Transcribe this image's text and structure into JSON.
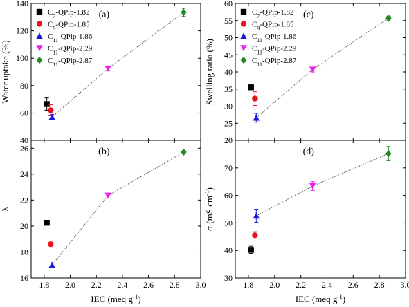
{
  "series_colors": [
    "#000000",
    "#e8141b",
    "#1a1adf",
    "#ee20ee",
    "#1f8a1f"
  ],
  "series_markers": [
    "square",
    "circle",
    "triangle-up",
    "triangle-down",
    "diamond"
  ],
  "shared_x": {
    "label": "IEC (meq g",
    "label_sup": "-1",
    "label_close": ")",
    "lim": [
      1.7,
      3.0
    ],
    "ticks": [
      1.8,
      2.0,
      2.2,
      2.4,
      2.6,
      2.8,
      3.0
    ],
    "tick_labels": [
      "1.8",
      "2.0",
      "2.2",
      "2.4",
      "2.6",
      "2.8",
      "3.0"
    ]
  },
  "chart_data": [
    {
      "id": "a",
      "type": "scatter",
      "panel_label": "(a)",
      "ylabel": "Water uptake (%)",
      "ylim": [
        40,
        140
      ],
      "yticks": [
        40,
        60,
        80,
        100,
        120,
        140
      ],
      "ytick_labels": [
        "40",
        "60",
        "80",
        "100",
        "120",
        "140"
      ],
      "grid": false,
      "legend": {
        "placement": "top-left",
        "entries": [
          {
            "pre": "C",
            "sub": "7",
            "post": "-QPip-1.82"
          },
          {
            "pre": "C",
            "sub": "9",
            "post": "-QPip-1.85"
          },
          {
            "pre": "C",
            "sub": "11",
            "post": "-QPip-1.86"
          },
          {
            "pre": "C",
            "sub": "11",
            "post": "-QPip-2.29"
          },
          {
            "pre": "C",
            "sub": "11",
            "post": "-QPip-2.87"
          }
        ]
      },
      "points": [
        {
          "x": 1.82,
          "y": 66.5,
          "err": 4.5
        },
        {
          "x": 1.85,
          "y": 62,
          "err": 4
        },
        {
          "x": 1.86,
          "y": 57,
          "err": 2
        },
        {
          "x": 2.29,
          "y": 92.5,
          "err": 1.5
        },
        {
          "x": 2.87,
          "y": 133.5,
          "err": 3
        }
      ],
      "fit_line": {
        "x": [
          1.86,
          2.29,
          2.87
        ],
        "y": [
          57,
          92.5,
          133.5
        ]
      }
    },
    {
      "id": "b",
      "type": "scatter",
      "panel_label": "(b)",
      "ylabel": "λ",
      "ylim": [
        16,
        26.6
      ],
      "yticks": [
        16,
        18,
        20,
        22,
        24,
        26
      ],
      "ytick_labels": [
        "16",
        "18",
        "20",
        "22",
        "24",
        "26"
      ],
      "grid": false,
      "points": [
        {
          "x": 1.82,
          "y": 20.25,
          "err": 0
        },
        {
          "x": 1.85,
          "y": 18.6,
          "err": 0
        },
        {
          "x": 1.86,
          "y": 17.0,
          "err": 0
        },
        {
          "x": 2.29,
          "y": 22.35,
          "err": 0
        },
        {
          "x": 2.87,
          "y": 25.7,
          "err": 0
        }
      ],
      "fit_line": {
        "x": [
          1.86,
          2.29,
          2.87
        ],
        "y": [
          17.0,
          22.35,
          25.7
        ]
      }
    },
    {
      "id": "c",
      "type": "scatter",
      "panel_label": "(c)",
      "ylabel": "Swelling ratio (%)",
      "ylim": [
        20,
        60
      ],
      "yticks": [
        20,
        25,
        30,
        35,
        40,
        45,
        50,
        55,
        60
      ],
      "ytick_labels": [
        "20",
        "25",
        "30",
        "35",
        "40",
        "45",
        "50",
        "55",
        "60"
      ],
      "grid": false,
      "legend": {
        "placement": "top-left",
        "entries": [
          {
            "pre": "C",
            "sub": "7",
            "post": "-QPip-1.82"
          },
          {
            "pre": "C",
            "sub": "9",
            "post": "-QPip-1.85"
          },
          {
            "pre": "C",
            "sub": "11",
            "post": "-QPip-1.86"
          },
          {
            "pre": "C",
            "sub": "11",
            "post": "-QPip-2.29"
          },
          {
            "pre": "C",
            "sub": "11",
            "post": "-QPip-2.87"
          }
        ]
      },
      "points": [
        {
          "x": 1.82,
          "y": 35.5,
          "err": 0.5
        },
        {
          "x": 1.85,
          "y": 32.2,
          "err": 2.0
        },
        {
          "x": 1.86,
          "y": 26.6,
          "err": 1.3
        },
        {
          "x": 2.29,
          "y": 40.7,
          "err": 0.7
        },
        {
          "x": 2.87,
          "y": 55.7,
          "err": 0.6
        }
      ],
      "fit_line": {
        "x": [
          1.86,
          2.29,
          2.87
        ],
        "y": [
          26.6,
          40.7,
          55.7
        ]
      }
    },
    {
      "id": "d",
      "type": "scatter",
      "panel_label": "(d)",
      "ylabel": "σ (mS cm",
      "ylabel_sup": "-1",
      "ylabel_close": ")",
      "ylim": [
        30,
        80
      ],
      "yticks": [
        30,
        40,
        50,
        60,
        70,
        80
      ],
      "ytick_labels": [
        "30",
        "40",
        "50",
        "60",
        "70",
        "80"
      ],
      "grid": false,
      "points": [
        {
          "x": 1.82,
          "y": 40.2,
          "err": 1.3
        },
        {
          "x": 1.85,
          "y": 45.5,
          "err": 1.3
        },
        {
          "x": 1.86,
          "y": 52.6,
          "err": 2.4
        },
        {
          "x": 2.29,
          "y": 63.4,
          "err": 1.6
        },
        {
          "x": 2.87,
          "y": 75.2,
          "err": 2.6
        }
      ],
      "fit_line": {
        "x": [
          1.86,
          2.29,
          2.87
        ],
        "y": [
          52.6,
          63.4,
          75.2
        ]
      }
    }
  ]
}
